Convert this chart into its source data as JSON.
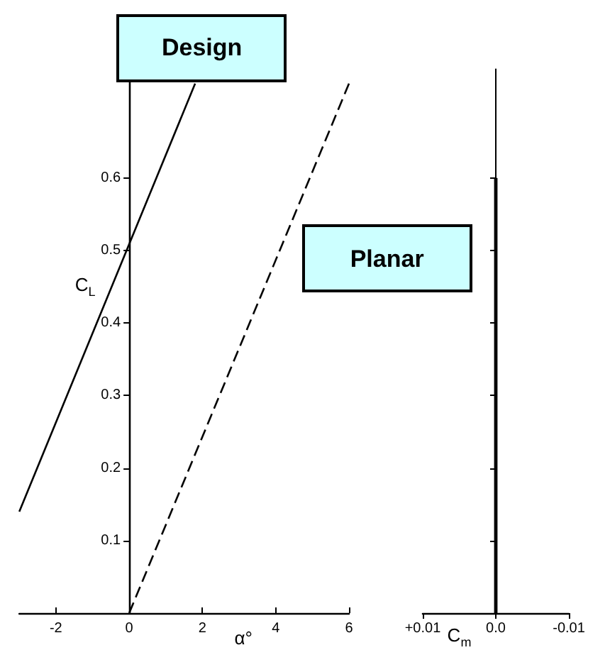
{
  "chart_data": [
    {
      "type": "line",
      "xlabel": "α°",
      "ylabel": "C$_{L}$",
      "xlim": [
        -3,
        6
      ],
      "xticks": [
        -2,
        0,
        2,
        4,
        6
      ],
      "ylim": [
        0,
        0.75
      ],
      "yticks": [
        0.1,
        0.2,
        0.3,
        0.4,
        0.5,
        0.6
      ],
      "marker": "none",
      "series": [
        {
          "name": "Design",
          "color": "#000000",
          "line_style": "solid",
          "x": [
            -3,
            1.8
          ],
          "values": [
            0.14,
            0.73
          ]
        },
        {
          "name": "Planar",
          "color": "#000000",
          "line_style": "dashed",
          "x": [
            0,
            6
          ],
          "values": [
            0,
            0.73
          ]
        }
      ]
    },
    {
      "type": "line",
      "xlabel": "C$_{m}$",
      "xlim": [
        0.01,
        -0.01
      ],
      "xticks": [
        {
          "value": 0.01,
          "label": "+0.01"
        },
        {
          "value": 0,
          "label": "0.0"
        },
        -0.01
      ],
      "ylim": [
        0,
        0.75
      ],
      "yticks": [
        {
          "value": 0.1,
          "label": null
        },
        {
          "value": 0.2,
          "label": null
        },
        {
          "value": 0.3,
          "label": null
        },
        {
          "value": 0.4,
          "label": null
        },
        {
          "value": 0.5,
          "label": null
        },
        {
          "value": 0.6,
          "label": null
        }
      ],
      "tick_labels": "x",
      "marker": "none",
      "series": [
        {
          "color": "#000000",
          "line_style": "solid",
          "x": [
            0,
            0
          ],
          "values": [
            0,
            0.6
          ]
        }
      ]
    }
  ]
}
